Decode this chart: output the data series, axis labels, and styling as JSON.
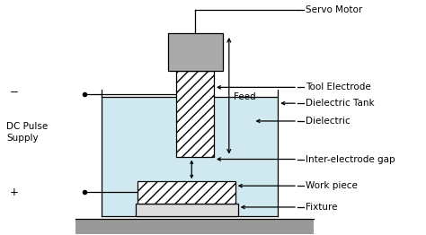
{
  "bg_color": "#ffffff",
  "line_color": "#000000",
  "tank_color": "#d0e8f0",
  "motor_color": "#aaaaaa",
  "fixture_color": "#cccccc",
  "ground_color": "#999999",
  "labels": {
    "servo_motor": "Servo Motor",
    "feed": "Feed",
    "tool_electrode": "Tool Electrode",
    "dielectric_tank": "Dielectric Tank",
    "dielectric": "Dielectric",
    "inter_electrode": "Inter-electrode gap",
    "work_piece": "Work piece",
    "fixture": "Fixture",
    "dc_pulse": "DC Pulse\nSupply",
    "minus": "−",
    "plus": "+"
  },
  "font_size": 7.5
}
